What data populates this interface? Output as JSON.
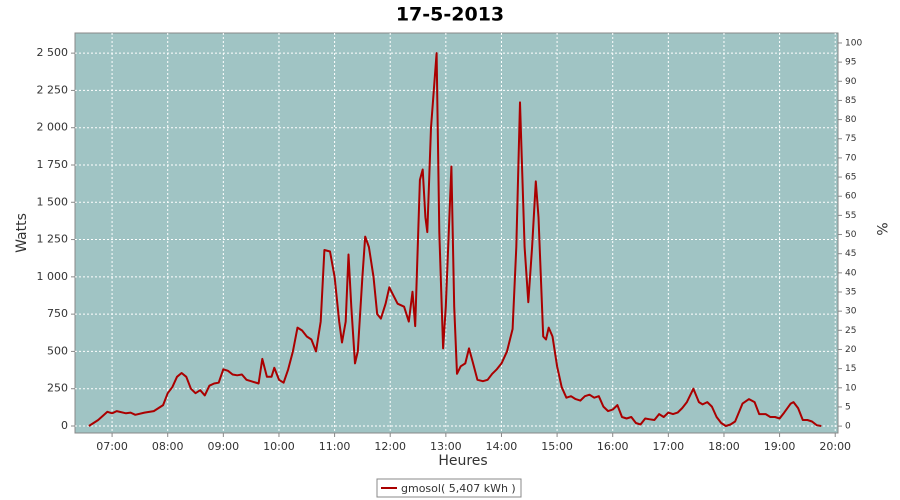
{
  "chart_data": {
    "type": "line",
    "title": "17-5-2013",
    "x_label": "Heures",
    "y_label": "Watts",
    "y2_label": "%",
    "x": [
      "06:35",
      "06:45",
      "06:55",
      "07:00",
      "07:05",
      "07:15",
      "07:20",
      "07:25",
      "07:35",
      "07:45",
      "07:55",
      "08:00",
      "08:05",
      "08:10",
      "08:15",
      "08:20",
      "08:25",
      "08:30",
      "08:35",
      "08:40",
      "08:45",
      "08:50",
      "08:55",
      "09:00",
      "09:05",
      "09:10",
      "09:15",
      "09:20",
      "09:25",
      "09:30",
      "09:38",
      "09:42",
      "09:47",
      "09:52",
      "09:55",
      "10:00",
      "10:05",
      "10:10",
      "10:15",
      "10:20",
      "10:25",
      "10:30",
      "10:35",
      "10:40",
      "10:45",
      "10:49",
      "10:55",
      "11:00",
      "11:05",
      "11:08",
      "11:12",
      "11:15",
      "11:18",
      "11:22",
      "11:25",
      "11:30",
      "11:33",
      "11:37",
      "11:42",
      "11:46",
      "11:50",
      "11:55",
      "11:59",
      "12:03",
      "12:08",
      "12:15",
      "12:20",
      "12:24",
      "12:27",
      "12:32",
      "12:35",
      "12:38",
      "12:40",
      "12:44",
      "12:50",
      "12:53",
      "12:57",
      "13:00",
      "13:06",
      "13:09",
      "13:12",
      "13:16",
      "13:21",
      "13:25",
      "13:29",
      "13:34",
      "13:40",
      "13:45",
      "13:50",
      "13:55",
      "14:00",
      "14:06",
      "14:12",
      "14:16",
      "14:20",
      "14:25",
      "14:29",
      "14:33",
      "14:37",
      "14:40",
      "14:45",
      "14:48",
      "14:51",
      "14:55",
      "15:00",
      "15:05",
      "15:10",
      "15:15",
      "15:20",
      "15:25",
      "15:30",
      "15:35",
      "15:40",
      "15:45",
      "15:50",
      "15:55",
      "16:00",
      "16:05",
      "16:10",
      "16:15",
      "16:20",
      "16:25",
      "16:30",
      "16:35",
      "16:40",
      "16:45",
      "16:50",
      "16:55",
      "17:00",
      "17:05",
      "17:10",
      "17:15",
      "17:20",
      "17:27",
      "17:33",
      "17:37",
      "17:42",
      "17:47",
      "17:52",
      "17:57",
      "18:02",
      "18:07",
      "18:12",
      "18:20",
      "18:27",
      "18:33",
      "18:38",
      "18:45",
      "18:50",
      "18:55",
      "19:00",
      "19:05",
      "19:12",
      "19:15",
      "19:20",
      "19:25",
      "19:30",
      "19:35",
      "19:40",
      "19:45"
    ],
    "series": [
      {
        "name": "gmosol( 5,407 kWh )",
        "color": "#aa0000",
        "values": [
          0,
          40,
          95,
          85,
          100,
          85,
          90,
          75,
          90,
          100,
          140,
          220,
          260,
          330,
          355,
          330,
          250,
          220,
          240,
          205,
          270,
          285,
          290,
          380,
          370,
          345,
          340,
          345,
          310,
          300,
          285,
          450,
          330,
          330,
          390,
          310,
          290,
          380,
          500,
          660,
          640,
          600,
          580,
          500,
          700,
          1180,
          1170,
          1000,
          700,
          560,
          700,
          1150,
          800,
          420,
          500,
          1000,
          1270,
          1200,
          1000,
          750,
          720,
          820,
          930,
          880,
          820,
          800,
          700,
          900,
          670,
          1650,
          1720,
          1400,
          1300,
          2000,
          2500,
          1300,
          520,
          800,
          1740,
          800,
          350,
          400,
          420,
          520,
          430,
          310,
          300,
          310,
          350,
          380,
          420,
          500,
          650,
          1200,
          2170,
          1200,
          830,
          1200,
          1640,
          1400,
          600,
          580,
          660,
          600,
          400,
          260,
          190,
          200,
          180,
          170,
          200,
          210,
          190,
          200,
          130,
          100,
          110,
          140,
          60,
          50,
          60,
          20,
          10,
          50,
          45,
          40,
          80,
          60,
          90,
          80,
          90,
          120,
          160,
          250,
          160,
          145,
          160,
          130,
          60,
          20,
          0,
          10,
          30,
          150,
          180,
          160,
          80,
          80,
          60,
          60,
          50,
          90,
          150,
          160,
          120,
          40,
          40,
          30,
          5,
          0
        ]
      }
    ],
    "xlim": [
      "06:20",
      "20:03"
    ],
    "xticks": [
      "07:00",
      "08:00",
      "09:00",
      "10:00",
      "11:00",
      "12:00",
      "13:00",
      "14:00",
      "15:00",
      "16:00",
      "17:00",
      "18:00",
      "19:00",
      "20:00"
    ],
    "ylim": [
      -47,
      2635
    ],
    "yticks": [
      0,
      250,
      500,
      750,
      {
        "value": 1000,
        "label": "1 000"
      },
      {
        "value": 1250,
        "label": "1 250"
      },
      {
        "value": 1500,
        "label": "1 500"
      },
      {
        "value": 1750,
        "label": "1 750"
      },
      {
        "value": 2000,
        "label": "2 000"
      },
      {
        "value": 2250,
        "label": "2 250"
      },
      {
        "value": 2500,
        "label": "2 500"
      }
    ],
    "y2lim": [
      -1.8,
      102.6
    ],
    "y2ticks": [
      0,
      5,
      10,
      15,
      20,
      25,
      30,
      35,
      40,
      45,
      50,
      55,
      60,
      65,
      70,
      75,
      80,
      85,
      90,
      95,
      100
    ],
    "grid": true,
    "legend": "bottom",
    "background": "#a0c4c4"
  }
}
